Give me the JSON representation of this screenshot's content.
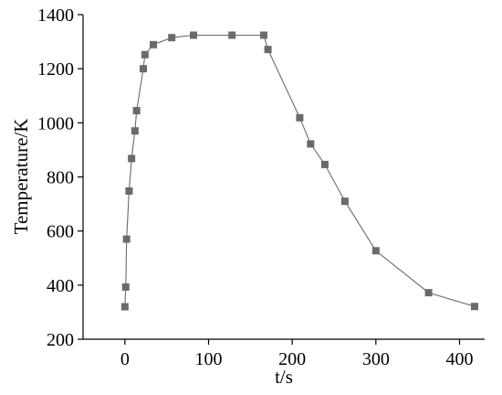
{
  "chart_data": {
    "type": "line",
    "title": "",
    "xlabel": "t/s",
    "ylabel": "Temperature/K",
    "xlim": [
      -50,
      430
    ],
    "ylim": [
      200,
      1400
    ],
    "xticks": [
      0,
      100,
      200,
      300,
      400
    ],
    "yticks": [
      200,
      400,
      600,
      800,
      1000,
      1200,
      1400
    ],
    "xtick_labels": [
      "0",
      "100",
      "200",
      "300",
      "400"
    ],
    "ytick_labels": [
      "200",
      "400",
      "600",
      "800",
      "1000",
      "1200",
      "1400"
    ],
    "grid": false,
    "legend": "none",
    "marker": "square",
    "line_color": "#6a6a6a",
    "marker_color": "#6a6a6a",
    "series": [
      {
        "x": [
          0,
          1,
          2,
          5,
          8,
          12,
          14,
          22,
          24,
          34,
          56,
          82,
          128,
          166,
          171,
          209,
          222,
          239,
          263,
          300,
          363,
          418
        ],
        "y": [
          320,
          393,
          570,
          748,
          868,
          970,
          1045,
          1200,
          1252,
          1289,
          1315,
          1324,
          1324,
          1324,
          1271,
          1019,
          922,
          846,
          710,
          527,
          372,
          321
        ]
      }
    ]
  }
}
